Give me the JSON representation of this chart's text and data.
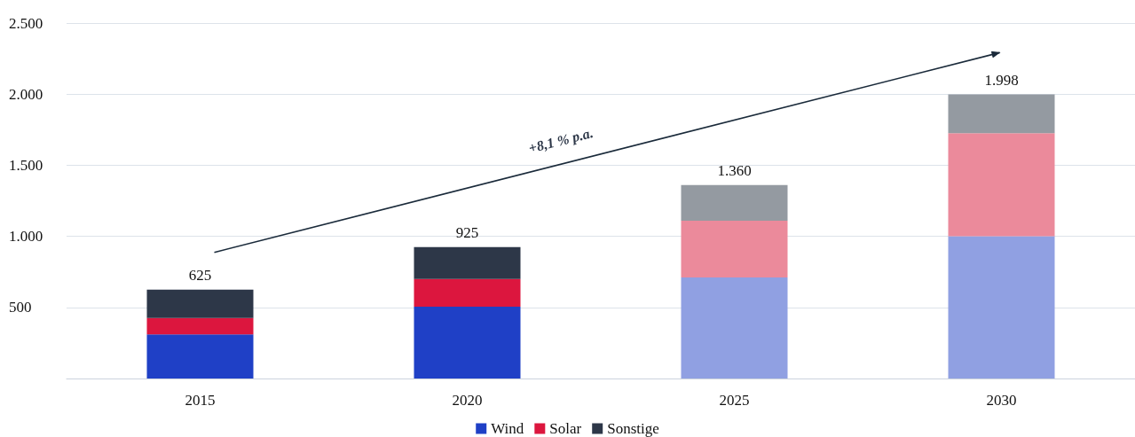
{
  "chart_data": {
    "type": "bar",
    "stacked": true,
    "categories": [
      "2015",
      "2020",
      "2025",
      "2030"
    ],
    "series": [
      {
        "name": "Wind",
        "color": "#1f40c6",
        "colors": [
          "#1f40c6",
          "#1f40c6",
          "#90a0e2",
          "#90a0e2"
        ],
        "values": [
          310,
          505,
          710,
          1000
        ]
      },
      {
        "name": "Solar",
        "color": "#dc163e",
        "colors": [
          "#dc163e",
          "#dc163e",
          "#eb8a9b",
          "#eb8a9b"
        ],
        "values": [
          115,
          195,
          400,
          725
        ]
      },
      {
        "name": "Sonstige",
        "color": "#2d3748",
        "colors": [
          "#2d3748",
          "#2d3748",
          "#949aa1",
          "#949aa1"
        ],
        "values": [
          200,
          225,
          250,
          273
        ]
      }
    ],
    "totals": [
      "625",
      "925",
      "1.360",
      "1.998"
    ],
    "ylim": [
      0,
      2500
    ],
    "yticks": [
      {
        "value": 0,
        "label": null
      },
      {
        "value": 500,
        "label": "500"
      },
      {
        "value": 1000,
        "label": "1.000"
      },
      {
        "value": 1500,
        "label": "1.500"
      },
      {
        "value": 2000,
        "label": "2.000"
      },
      {
        "value": 2500,
        "label": "2.500"
      }
    ],
    "grid": "y",
    "legend": "bottom",
    "annotations": [
      "+8,1 % p.a."
    ]
  }
}
